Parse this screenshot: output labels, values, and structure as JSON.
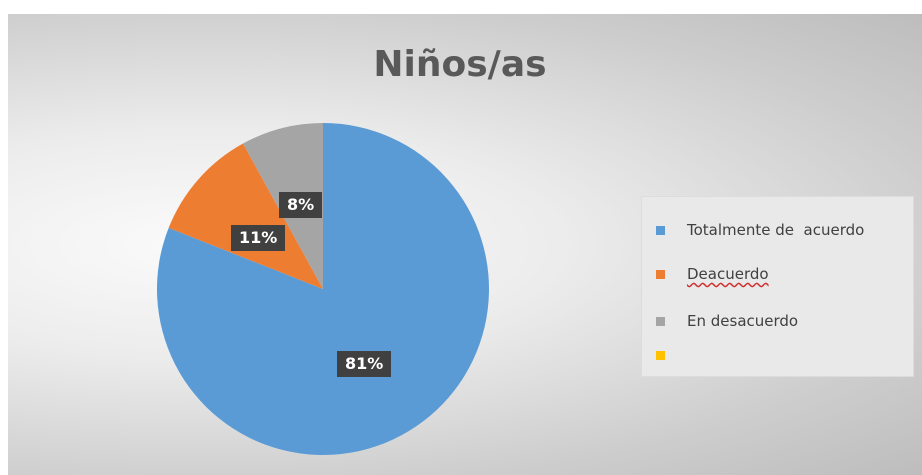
{
  "chart_data": {
    "type": "pie",
    "title": "Niños/as",
    "categories": [
      "Totalmente de  acuerdo",
      "Deacuerdo",
      "En desacuerdo",
      ""
    ],
    "values": [
      81,
      11,
      8,
      0
    ],
    "data_labels": [
      "81%",
      "11%",
      "8%",
      ""
    ],
    "colors": [
      "#5b9bd5",
      "#ed7d31",
      "#a5a5a5",
      "#ffc000"
    ],
    "legend_position": "right"
  }
}
